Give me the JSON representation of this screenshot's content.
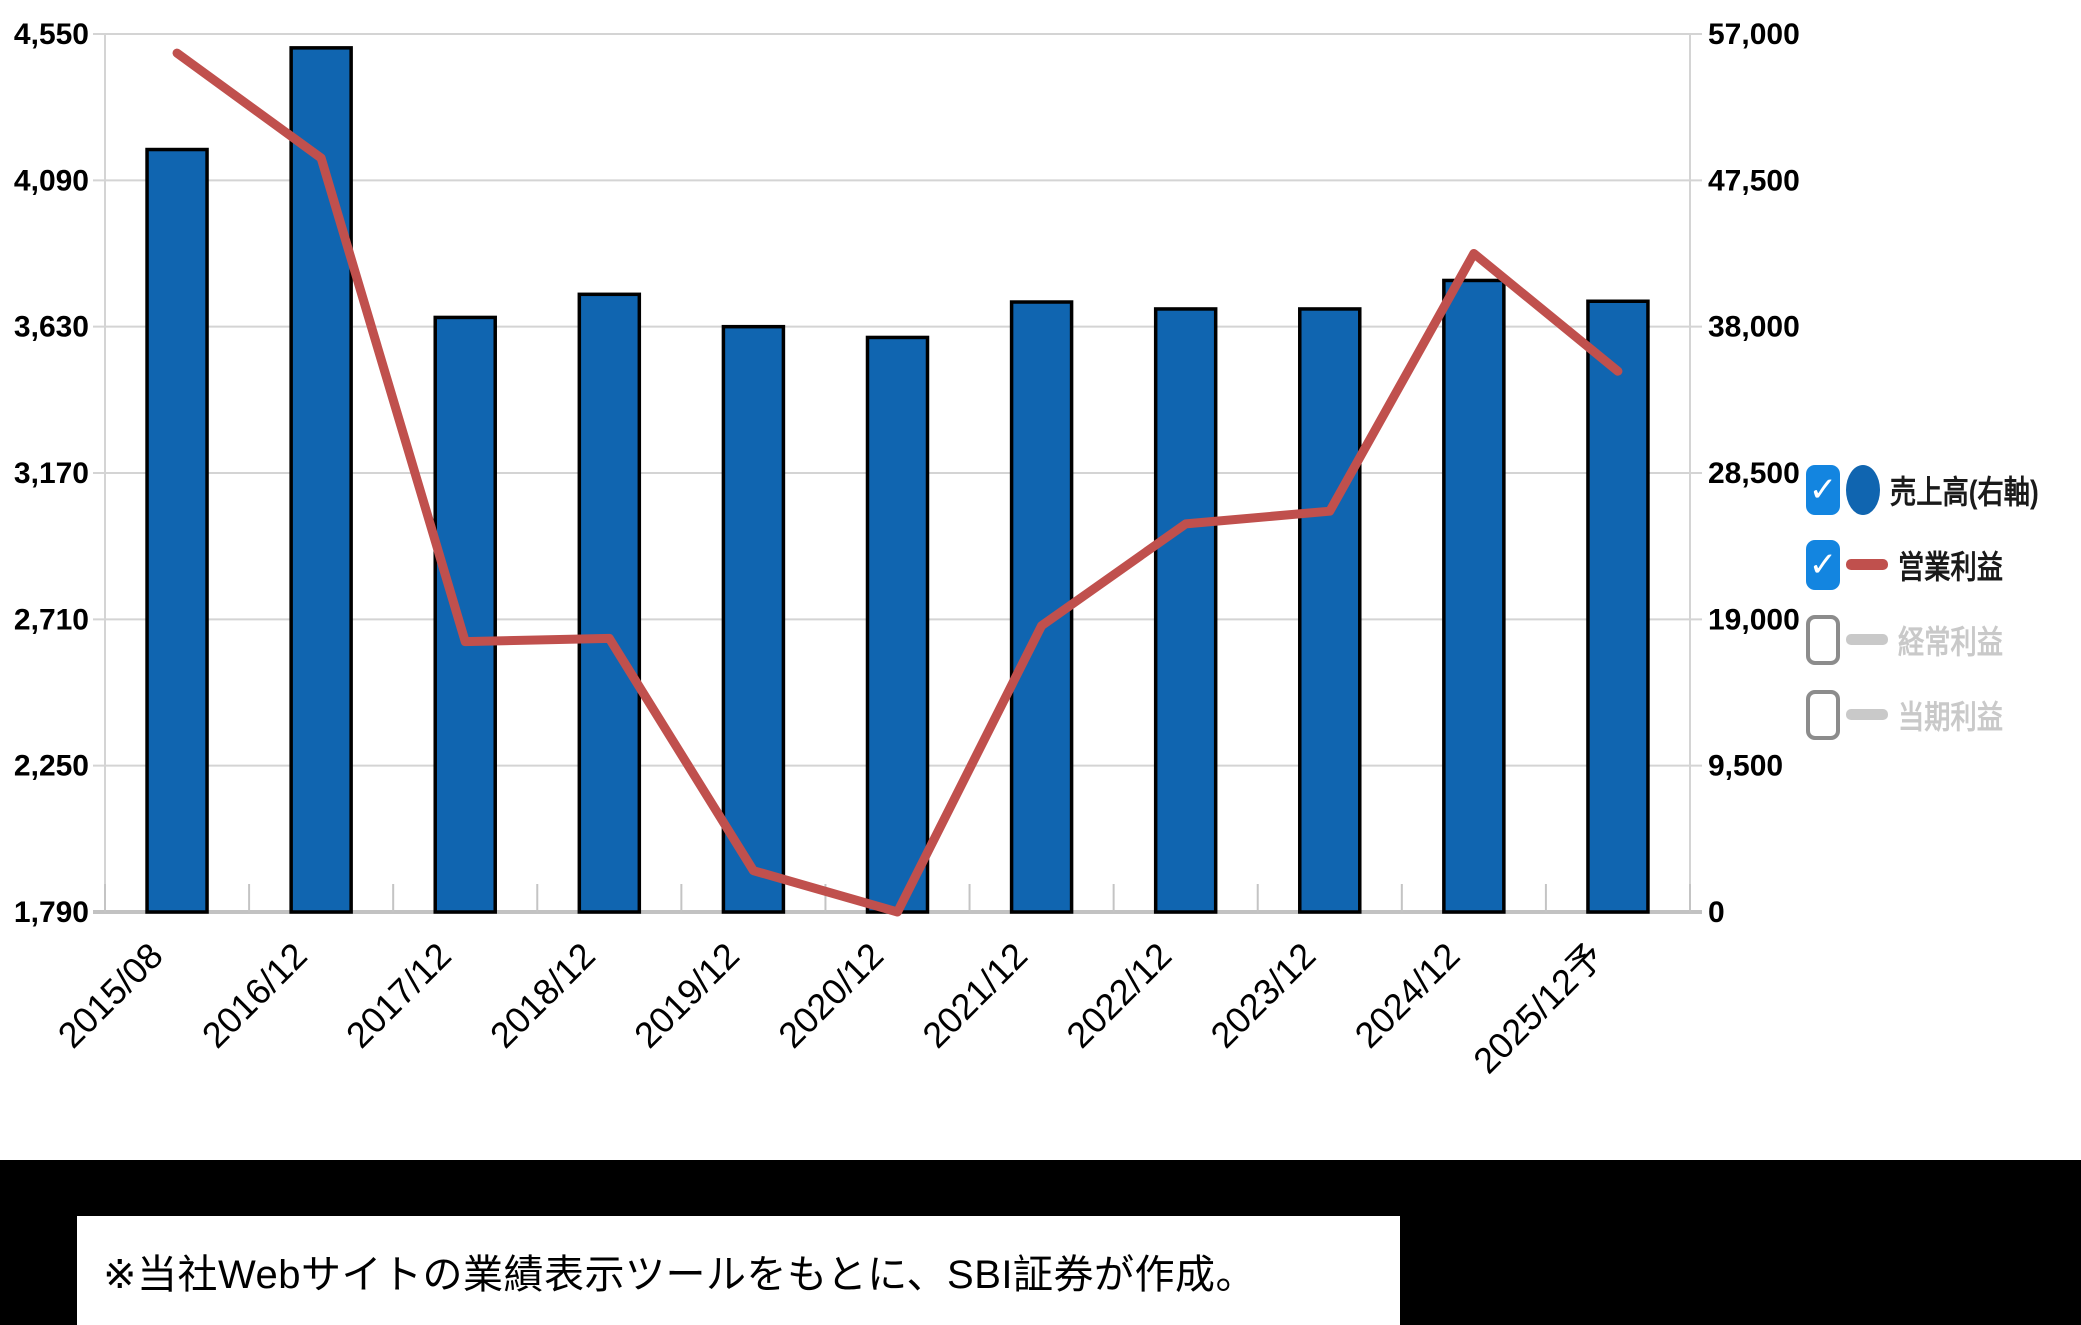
{
  "chart_data": {
    "type": "bar+line",
    "title": "",
    "xlabel": "",
    "ylabel": "",
    "categories": [
      "2015/08",
      "2016/12",
      "2017/12",
      "2018/12",
      "2019/12",
      "2020/12",
      "2021/12",
      "2022/12",
      "2023/12",
      "2024/12",
      "2025/12予"
    ],
    "series": [
      {
        "name": "売上高(右軸)",
        "type": "bar",
        "axis": "right",
        "color": "#1065b0",
        "values": [
          49500,
          56100,
          38600,
          40100,
          38000,
          37300,
          39600,
          39150,
          39150,
          41000,
          39650
        ]
      },
      {
        "name": "営業利益",
        "type": "line",
        "axis": "left",
        "color": "#c0504d",
        "values": [
          4490,
          4160,
          2640,
          2650,
          1920,
          1790,
          2690,
          3010,
          3050,
          3860,
          3490
        ]
      }
    ],
    "left_axis": {
      "min": 1790,
      "max": 4550,
      "ticks": [
        4550,
        4090,
        3630,
        3170,
        2710,
        2250,
        1790
      ]
    },
    "right_axis": {
      "min": 0,
      "max": 57000,
      "ticks": [
        57000,
        47500,
        38000,
        28500,
        19000,
        9500,
        0
      ]
    },
    "grid": true,
    "legend": {
      "position": "right",
      "items": [
        {
          "label": "売上高(右軸)",
          "marker": "circle",
          "checked": true,
          "color": "#1065b0"
        },
        {
          "label": "営業利益",
          "marker": "line",
          "checked": true,
          "color": "#c0504d"
        },
        {
          "label": "経常利益",
          "marker": "line",
          "checked": false,
          "color": "#c9c9c9"
        },
        {
          "label": "当期利益",
          "marker": "line",
          "checked": false,
          "color": "#c9c9c9"
        }
      ]
    }
  },
  "footnote": {
    "text": "※当社Webサイトの業績表示ツールをもとに、SBI証券が作成。"
  },
  "colors": {
    "bar": "#1065b0",
    "bar_border": "#000000",
    "line": "#c0504d",
    "grid": "#d4d4d4",
    "baseline": "#c2c2c2",
    "tick_mark": "#c4c4c4",
    "axis_text": "#000000",
    "checkbox_checked": "#1385e0",
    "checkbox_border": "#8c8c8c",
    "disabled_text": "#c9c9c9",
    "band_bg": "#000000",
    "note_bg": "#ffffff"
  }
}
